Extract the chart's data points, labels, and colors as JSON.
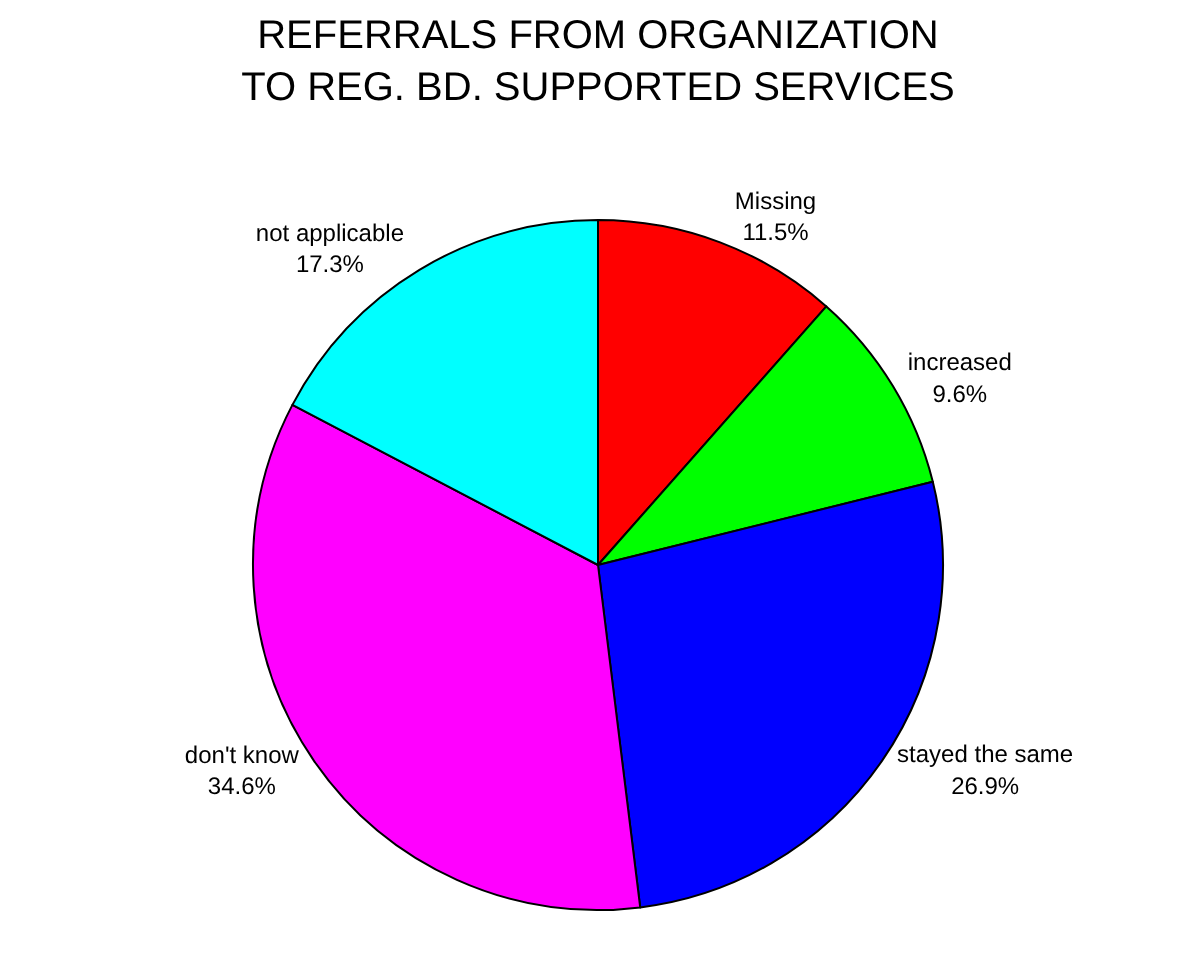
{
  "chart_data": {
    "type": "pie",
    "title": "REFERRALS FROM ORGANIZATION\nTO REG. BD. SUPPORTED SERVICES",
    "categories": [
      "Missing",
      "increased",
      "stayed the same",
      "don't know",
      "not applicable"
    ],
    "values": [
      11.5,
      9.6,
      26.9,
      34.6,
      17.3
    ],
    "value_labels": [
      "11.5%",
      "9.6%",
      "26.9%",
      "34.6%",
      "17.3%"
    ],
    "colors": [
      "#ff0000",
      "#00ff00",
      "#0000ff",
      "#ff00ff",
      "#00ffff"
    ],
    "legend": false
  }
}
